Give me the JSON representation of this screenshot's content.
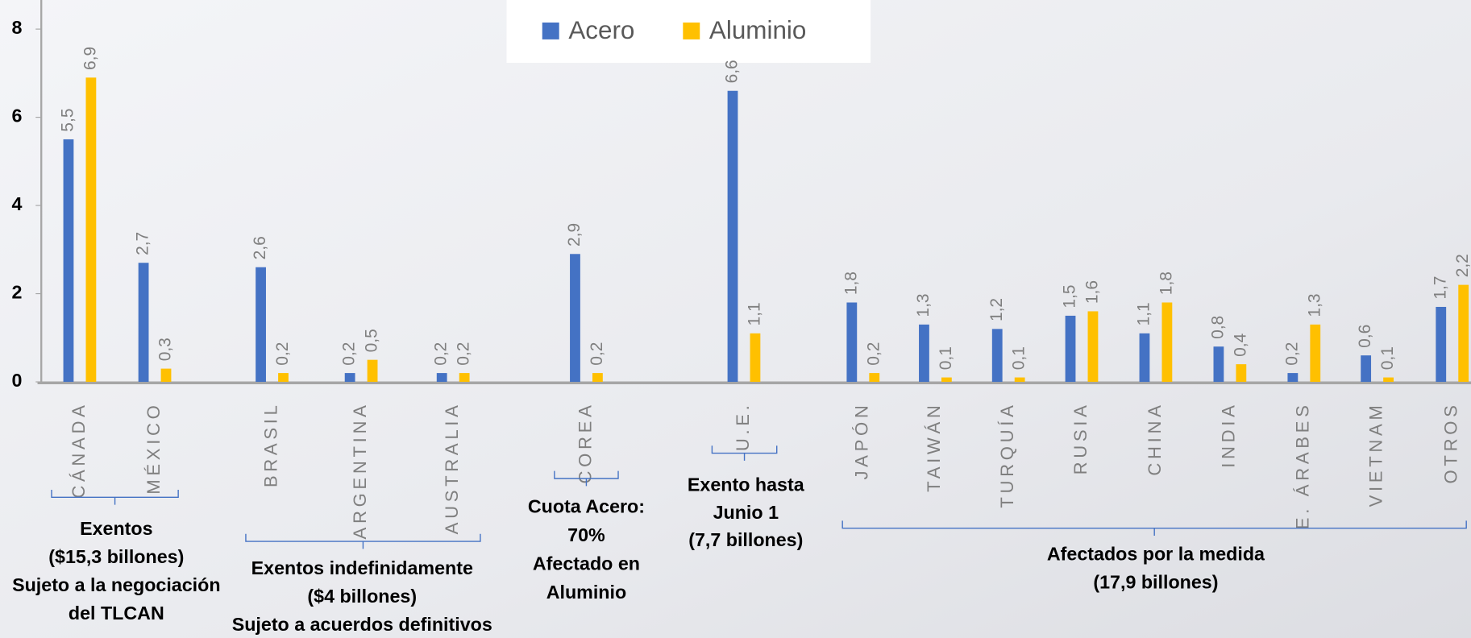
{
  "chart_data": {
    "type": "bar",
    "categories": [
      "CÁNADA",
      "MÉXICO",
      "BRASIL",
      "ARGENTINA",
      "AUSTRALIA",
      "COREA",
      "U.E.",
      "JAPÓN",
      "TAIWÁN",
      "TURQUÍA",
      "RUSIA",
      "CHINA",
      "INDIA",
      "E. ÁRABES",
      "VIETNAM",
      "OTROS"
    ],
    "series": [
      {
        "name": "Acero",
        "color": "#4472c4",
        "values": [
          5.5,
          2.7,
          2.6,
          0.2,
          0.2,
          2.9,
          6.6,
          1.8,
          1.3,
          1.2,
          1.5,
          1.1,
          0.8,
          0.2,
          0.6,
          1.7
        ],
        "value_labels": [
          "5,5",
          "2,7",
          "2,6",
          "0,2",
          "0,2",
          "2,9",
          "6,6",
          "1,8",
          "1,3",
          "1,2",
          "1,5",
          "1,1",
          "0,8",
          "0,2",
          "0,6",
          "1,7"
        ]
      },
      {
        "name": "Aluminio",
        "color": "#ffc000",
        "values": [
          6.9,
          0.3,
          0.2,
          0.5,
          0.2,
          0.2,
          1.1,
          0.2,
          0.1,
          0.1,
          1.6,
          1.8,
          0.4,
          1.3,
          0.1,
          2.2
        ],
        "value_labels": [
          "6,9",
          "0,3",
          "0,2",
          "0,5",
          "0,2",
          "0,2",
          "1,1",
          "0,2",
          "0,1",
          "0,1",
          "1,6",
          "1,8",
          "0,4",
          "1,3",
          "0,1",
          "2,2"
        ]
      }
    ],
    "ylim": [
      0,
      8
    ],
    "yticks": [
      0,
      2,
      4,
      6,
      8
    ],
    "legend": "top",
    "annotations": [
      [
        "Exentos",
        "($15,3 billones)",
        "Sujeto a la negociación",
        "del TLCAN"
      ],
      [
        "Exentos indefinidamente",
        "($4 billones)",
        "Sujeto a acuerdos definitivos"
      ],
      [
        "Cuota Acero:",
        "70%",
        "Afectado en",
        "Aluminio"
      ],
      [
        "Exento hasta",
        "Junio 1",
        "(7,7 billones)"
      ],
      [
        "Afectados por la medida",
        "(17,9 billones)"
      ]
    ]
  }
}
